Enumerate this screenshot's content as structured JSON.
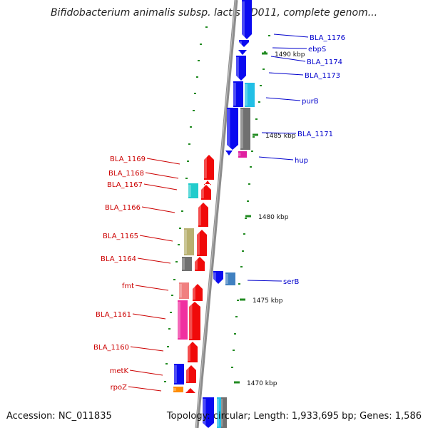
{
  "title": "Bifidobacterium animalis subsp. lactis AD011, complete genom...",
  "footer": {
    "accession": "Accession: NC_011835",
    "topology": "Topology: circular; Length: 1,933,695 bp; Genes: 1,586"
  },
  "colors": {
    "forward_label": "#0000cc",
    "reverse_label": "#cc0000",
    "tick": "#228b22",
    "backbone": "#8c8c8c"
  },
  "ticks": [
    {
      "label": "1490 kbp"
    },
    {
      "label": "1485 kbp"
    },
    {
      "label": "1480 kbp"
    },
    {
      "label": "1475 kbp"
    },
    {
      "label": "1470 kbp"
    }
  ],
  "genes": [
    {
      "name": "BLA_1176",
      "strand": "forward"
    },
    {
      "name": "ebpS",
      "strand": "forward"
    },
    {
      "name": "BLA_1174",
      "strand": "forward"
    },
    {
      "name": "BLA_1173",
      "strand": "forward"
    },
    {
      "name": "purB",
      "strand": "forward"
    },
    {
      "name": "BLA_1171",
      "strand": "forward"
    },
    {
      "name": "hup",
      "strand": "forward"
    },
    {
      "name": "serB",
      "strand": "forward"
    },
    {
      "name": "BLA_1169",
      "strand": "reverse"
    },
    {
      "name": "BLA_1168",
      "strand": "reverse"
    },
    {
      "name": "BLA_1167",
      "strand": "reverse"
    },
    {
      "name": "BLA_1166",
      "strand": "reverse"
    },
    {
      "name": "BLA_1165",
      "strand": "reverse"
    },
    {
      "name": "BLA_1164",
      "strand": "reverse"
    },
    {
      "name": "fmt",
      "strand": "reverse"
    },
    {
      "name": "BLA_1161",
      "strand": "reverse"
    },
    {
      "name": "BLA_1160",
      "strand": "reverse"
    },
    {
      "name": "metK",
      "strand": "reverse"
    },
    {
      "name": "rpoZ",
      "strand": "reverse"
    }
  ]
}
